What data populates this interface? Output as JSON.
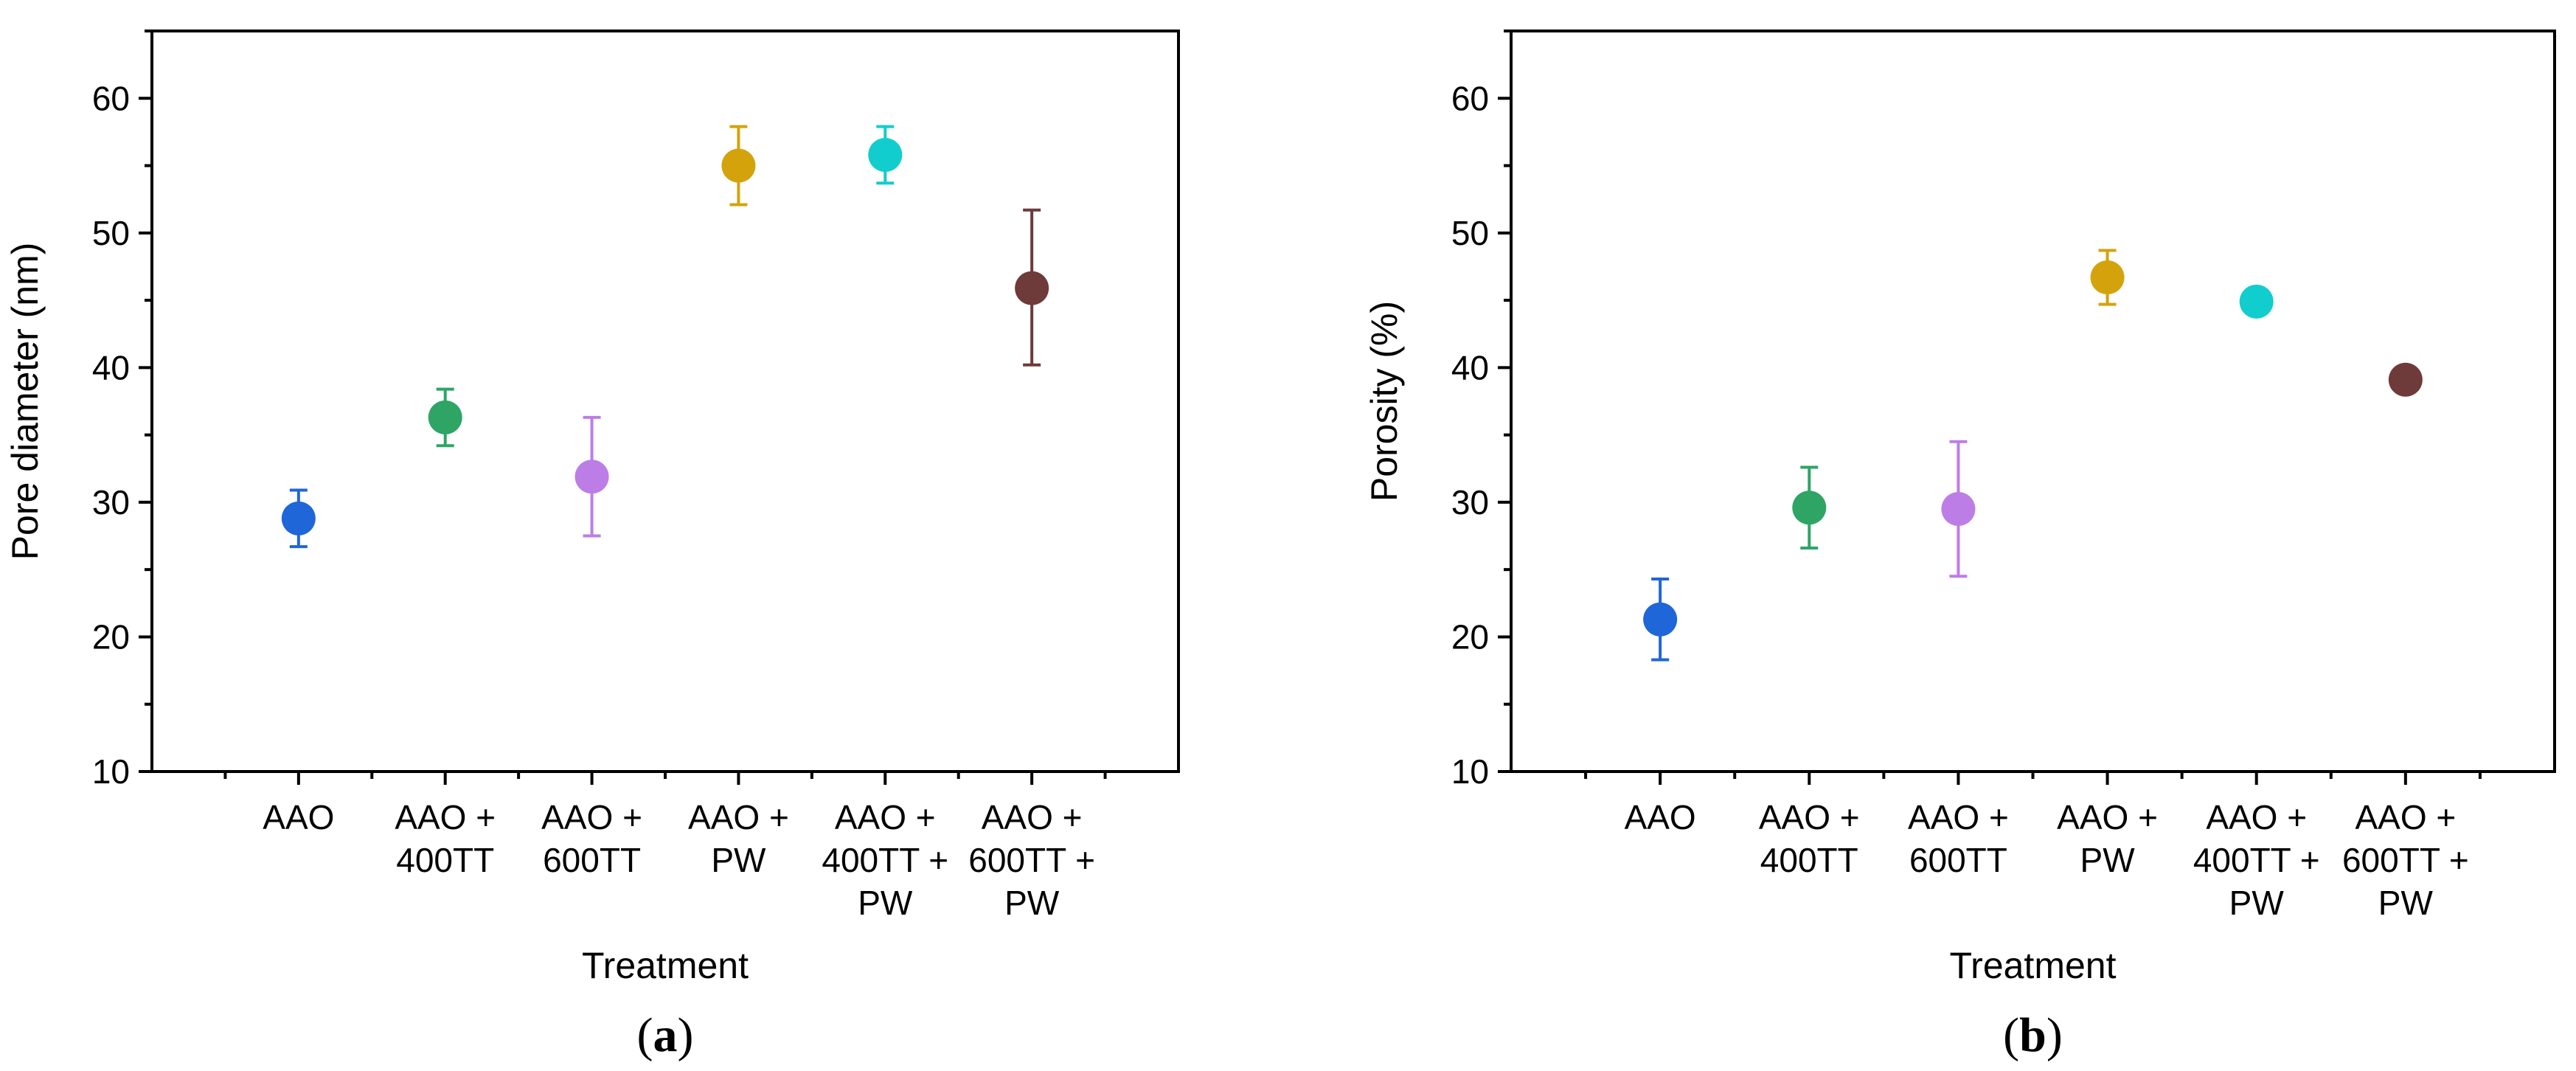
{
  "chart_data": [
    {
      "type": "scatter",
      "panel_label": {
        "open": "(",
        "letter": "a",
        "close": ")"
      },
      "xlabel": "Treatment",
      "ylabel": "Pore diameter (nm)",
      "ylim": [
        10,
        65
      ],
      "yticks": [
        10,
        20,
        30,
        40,
        50,
        60
      ],
      "grid": false,
      "categories": [
        [
          "AAO"
        ],
        [
          "AAO +",
          "400TT"
        ],
        [
          "AAO +",
          "600TT"
        ],
        [
          "AAO +",
          "PW"
        ],
        [
          "AAO +",
          "400TT +",
          "PW"
        ],
        [
          "AAO +",
          "600TT +",
          "PW"
        ]
      ],
      "values": [
        28.8,
        36.3,
        31.9,
        55.0,
        55.8,
        45.9
      ],
      "error_low": [
        26.7,
        34.2,
        27.5,
        52.1,
        53.7,
        40.2
      ],
      "error_high": [
        30.9,
        38.4,
        36.3,
        57.9,
        57.9,
        51.7
      ],
      "colors": [
        "#1f66d8",
        "#2ea565",
        "#bd7de6",
        "#d4a30c",
        "#12cdcd",
        "#6e3a3a"
      ]
    },
    {
      "type": "scatter",
      "panel_label": {
        "open": "(",
        "letter": "b",
        "close": ")"
      },
      "xlabel": "Treatment",
      "ylabel": "Porosity (%)",
      "ylim": [
        10,
        65
      ],
      "yticks": [
        10,
        20,
        30,
        40,
        50,
        60
      ],
      "grid": false,
      "categories": [
        [
          "AAO"
        ],
        [
          "AAO +",
          "400TT"
        ],
        [
          "AAO +",
          "600TT"
        ],
        [
          "AAO +",
          "PW"
        ],
        [
          "AAO +",
          "400TT +",
          "PW"
        ],
        [
          "AAO +",
          "600TT +",
          "PW"
        ]
      ],
      "values": [
        21.3,
        29.6,
        29.5,
        46.7,
        44.9,
        39.1
      ],
      "error_low": [
        18.3,
        26.6,
        24.5,
        44.7,
        44.5,
        38.9
      ],
      "error_high": [
        24.3,
        32.6,
        34.5,
        48.7,
        45.3,
        39.3
      ],
      "colors": [
        "#1f66d8",
        "#2ea565",
        "#bd7de6",
        "#d4a30c",
        "#12cdcd",
        "#6e3a3a"
      ]
    }
  ]
}
